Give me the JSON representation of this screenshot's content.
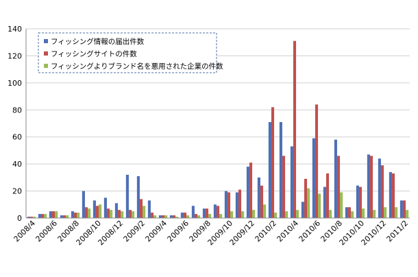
{
  "chart_data": {
    "type": "bar",
    "ylim": [
      0,
      140
    ],
    "yticks": [
      0,
      20,
      40,
      60,
      80,
      100,
      120,
      140
    ],
    "grid": true,
    "legend_position": "top-left",
    "categories": [
      "2008/4",
      "2008/5",
      "2008/6",
      "2008/7",
      "2008/8",
      "2008/9",
      "2008/10",
      "2008/11",
      "2008/12",
      "2009/1",
      "2009/2",
      "2009/3",
      "2009/4",
      "2009/5",
      "2009/6",
      "2009/7",
      "2009/8",
      "2009/9",
      "2009/10",
      "2009/11",
      "2009/12",
      "2010/1",
      "2010/2",
      "2010/3",
      "2010/4",
      "2010/5",
      "2010/6",
      "2010/7",
      "2010/8",
      "2010/9",
      "2010/10",
      "2010/11",
      "2010/12",
      "2011/1",
      "2011/2"
    ],
    "xtick_labels": [
      "2008/4",
      "2008/6",
      "2008/8",
      "2008/10",
      "2008/12",
      "2009/2",
      "2009/4",
      "2009/6",
      "2009/8",
      "2009/10",
      "2009/12",
      "2010/2",
      "2010/4",
      "2010/6",
      "2010/8",
      "2010/10",
      "2010/12",
      "2011/2"
    ],
    "series": [
      {
        "name": "フィッシング情報の届出件数",
        "color": "#4f6fb5",
        "values": [
          1,
          3,
          5,
          2,
          5,
          20,
          13,
          15,
          11,
          32,
          31,
          13,
          2,
          2,
          4,
          9,
          7,
          10,
          20,
          19,
          38,
          30,
          71,
          71,
          53,
          12,
          59,
          23,
          58,
          8,
          24,
          47,
          44,
          34,
          13
        ]
      },
      {
        "name": "フィッシングサイトの件数",
        "color": "#c0504d",
        "values": [
          1,
          3,
          5,
          2,
          4,
          8,
          9,
          7,
          6,
          6,
          14,
          4,
          2,
          2,
          4,
          3,
          7,
          9,
          19,
          21,
          41,
          24,
          82,
          46,
          131,
          29,
          84,
          33,
          46,
          8,
          23,
          46,
          39,
          33,
          13
        ]
      },
      {
        "name": "フィッシングよりブランド名を悪用された企業の件数",
        "color": "#9bbb59",
        "values": [
          1,
          3,
          5,
          2,
          4,
          7,
          10,
          6,
          5,
          5,
          9,
          2,
          2,
          1,
          2,
          2,
          3,
          3,
          5,
          5,
          6,
          10,
          4,
          5,
          6,
          22,
          18,
          6,
          19,
          5,
          7,
          6,
          8,
          8,
          6
        ]
      }
    ]
  }
}
